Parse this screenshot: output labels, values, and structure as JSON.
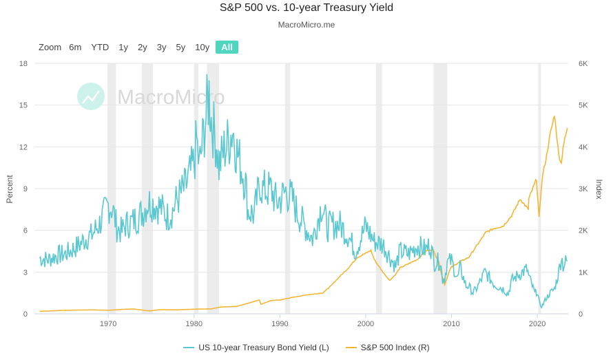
{
  "title": "S&P 500 vs. 10-year Treasury Yield",
  "subtitle": "MacroMicro.me",
  "zoom": {
    "label": "Zoom",
    "buttons": [
      "6m",
      "YTD",
      "1y",
      "2y",
      "3y",
      "5y",
      "10y",
      "All"
    ],
    "active": "All"
  },
  "watermark": "MacroMicro",
  "colors": {
    "yield": "#5bc8d1",
    "spx": "#f2b636",
    "recession": "#ececec",
    "grid": "#e6e6e6"
  },
  "chart_data": {
    "type": "line",
    "xlim": [
      1961.4,
      2023.6
    ],
    "x_ticks": [
      "1970",
      "1980",
      "1990",
      "2000",
      "2010",
      "2020"
    ],
    "left_axis": {
      "label": "Percent",
      "range": [
        0,
        18
      ],
      "ticks": [
        "0",
        "3",
        "6",
        "9",
        "12",
        "15",
        "18"
      ]
    },
    "right_axis": {
      "label": "Index",
      "range": [
        0,
        6000
      ],
      "ticks": [
        "0",
        "1K",
        "2K",
        "3K",
        "4K",
        "5K",
        "6K"
      ]
    },
    "recessions": [
      [
        1969.9,
        1970.9
      ],
      [
        1973.9,
        1975.2
      ],
      [
        1980.0,
        1980.5
      ],
      [
        1981.5,
        1982.9
      ],
      [
        1990.6,
        1991.2
      ],
      [
        2001.2,
        2001.9
      ],
      [
        2007.9,
        2009.5
      ],
      [
        2020.1,
        2020.4
      ]
    ],
    "series": [
      {
        "name": "US 10-year Treasury Bond Yield (L)",
        "axis": "left",
        "x": [
          1962.0,
          1963.0,
          1964.0,
          1965.0,
          1966.0,
          1966.7,
          1967.5,
          1968.0,
          1969.0,
          1970.0,
          1970.5,
          1971.0,
          1971.6,
          1972.0,
          1972.8,
          1973.5,
          1974.0,
          1974.6,
          1975.0,
          1976.0,
          1976.9,
          1977.5,
          1978.0,
          1979.0,
          1980.0,
          1980.3,
          1980.6,
          1981.0,
          1981.5,
          1981.75,
          1982.0,
          1982.6,
          1982.9,
          1983.5,
          1984.0,
          1984.5,
          1985.0,
          1985.5,
          1986.0,
          1986.3,
          1986.6,
          1987.0,
          1987.7,
          1988.0,
          1989.0,
          1989.6,
          1990.0,
          1990.7,
          1991.5,
          1992.0,
          1993.0,
          1993.8,
          1994.0,
          1994.9,
          1995.5,
          1996.0,
          1997.0,
          1998.0,
          1998.8,
          1999.0,
          2000.0,
          2001.0,
          2002.0,
          2003.0,
          2003.5,
          2004.0,
          2005.0,
          2006.0,
          2007.0,
          2007.5,
          2008.0,
          2008.7,
          2008.95,
          2009.2,
          2009.5,
          2010.0,
          2010.7,
          2011.0,
          2011.7,
          2012.0,
          2012.5,
          2013.0,
          2013.9,
          2014.5,
          2015.0,
          2016.0,
          2016.6,
          2017.0,
          2018.0,
          2018.8,
          2019.0,
          2019.7,
          2020.0,
          2020.3,
          2020.6,
          2021.0,
          2021.5,
          2022.0,
          2022.5,
          2022.8,
          2023.0,
          2023.5
        ],
        "values": [
          4.0,
          3.9,
          4.2,
          4.3,
          4.7,
          5.0,
          5.5,
          5.6,
          6.5,
          7.8,
          7.6,
          6.2,
          5.9,
          6.4,
          6.6,
          7.0,
          7.3,
          8.0,
          8.0,
          7.7,
          7.0,
          7.4,
          8.2,
          9.1,
          10.8,
          12.5,
          10.5,
          12.4,
          14.7,
          15.8,
          14.0,
          12.3,
          10.6,
          11.8,
          12.4,
          13.3,
          11.6,
          10.6,
          9.4,
          7.4,
          7.3,
          7.1,
          9.5,
          8.9,
          8.9,
          8.0,
          8.2,
          8.8,
          8.2,
          7.3,
          6.2,
          5.4,
          5.8,
          7.9,
          6.2,
          6.4,
          6.4,
          5.6,
          4.5,
          4.8,
          6.3,
          5.2,
          5.0,
          3.9,
          3.4,
          4.5,
          4.3,
          4.9,
          4.6,
          5.0,
          3.7,
          3.8,
          2.5,
          2.6,
          3.7,
          3.8,
          2.5,
          3.3,
          2.0,
          2.0,
          1.5,
          1.9,
          3.0,
          2.5,
          2.1,
          1.8,
          1.4,
          2.4,
          2.9,
          3.2,
          2.7,
          1.5,
          1.6,
          0.6,
          0.6,
          1.1,
          1.5,
          1.8,
          3.0,
          4.2,
          3.5,
          3.8
        ]
      },
      {
        "name": "S&P 500 Index (R)",
        "axis": "right",
        "x": [
          1962.0,
          1965.0,
          1968.0,
          1970.0,
          1972.0,
          1973.0,
          1974.8,
          1976.0,
          1978.0,
          1980.0,
          1982.0,
          1983.0,
          1985.0,
          1987.6,
          1987.8,
          1989.0,
          1990.0,
          1991.0,
          1993.0,
          1995.0,
          1996.0,
          1997.0,
          1998.0,
          1999.0,
          2000.0,
          2000.6,
          2001.0,
          2002.0,
          2002.8,
          2003.5,
          2004.0,
          2005.0,
          2006.0,
          2007.0,
          2007.8,
          2008.5,
          2008.9,
          2009.2,
          2009.8,
          2010.0,
          2011.0,
          2012.0,
          2013.0,
          2014.0,
          2015.0,
          2016.0,
          2017.0,
          2018.0,
          2018.95,
          2019.0,
          2019.9,
          2020.2,
          2020.3,
          2020.6,
          2021.0,
          2021.5,
          2022.0,
          2022.5,
          2022.8,
          2023.0,
          2023.5
        ],
        "values": [
          60,
          85,
          95,
          85,
          110,
          115,
          70,
          100,
          95,
          110,
          120,
          160,
          180,
          330,
          230,
          320,
          330,
          375,
          450,
          500,
          680,
          900,
          1100,
          1350,
          1450,
          1520,
          1300,
          1000,
          800,
          950,
          1100,
          1200,
          1300,
          1500,
          1550,
          1250,
          900,
          700,
          1050,
          1120,
          1250,
          1350,
          1650,
          1950,
          2050,
          2100,
          2350,
          2750,
          2500,
          2750,
          3230,
          2300,
          2600,
          3300,
          3700,
          4300,
          4770,
          3800,
          3600,
          4000,
          4450
        ]
      }
    ]
  },
  "legend": {
    "yield_label": "US 10-year Treasury Bond Yield (L)",
    "spx_label": "S&P 500 Index (R)"
  }
}
